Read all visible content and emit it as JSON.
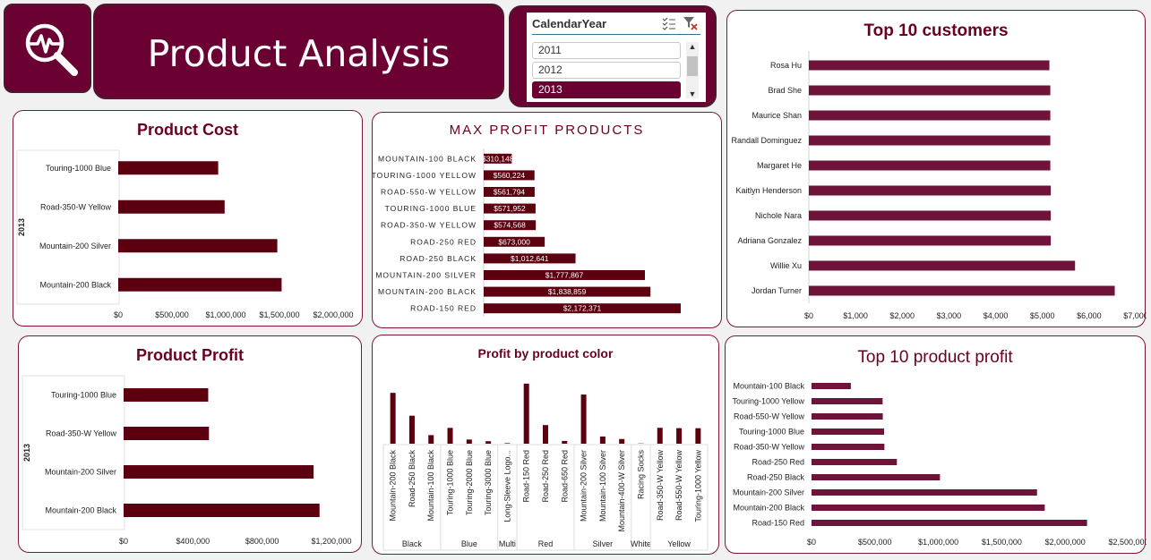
{
  "header": {
    "title": "Product Analysis",
    "icon": "analytics-search-icon"
  },
  "slicer": {
    "title": "CalendarYear",
    "items": [
      "2011",
      "2012",
      "2013"
    ],
    "selected": "2013"
  },
  "colors": {
    "maroon": "#6b0033",
    "bar_dark": "#5c0010",
    "bar_light": "#6e1339",
    "title": "#6b0020"
  },
  "charts": {
    "product_cost": {
      "title": "Product Cost",
      "group_label": "2013",
      "chart_data": {
        "type": "bar",
        "orientation": "horizontal",
        "categories": [
          "Touring-1000 Blue",
          "Road-350-W Yellow",
          "Mountain-200 Silver",
          "Mountain-200 Black"
        ],
        "values": [
          930000,
          990000,
          1480000,
          1520000
        ],
        "xlim": [
          0,
          2000000
        ],
        "ticks": [
          "$0",
          "$500,000",
          "$1,000,000",
          "$1,500,000",
          "$2,000,000"
        ]
      }
    },
    "max_profit": {
      "title": "MAX PROFIT PRODUCTS",
      "chart_data": {
        "type": "bar",
        "orientation": "horizontal",
        "categories": [
          "MOUNTAIN-100 BLACK",
          "TOURING-1000 YELLOW",
          "ROAD-550-W YELLOW",
          "TOURING-1000 BLUE",
          "ROAD-350-W YELLOW",
          "ROAD-250 RED",
          "ROAD-250 BLACK",
          "MOUNTAIN-200 SILVER",
          "MOUNTAIN-200 BLACK",
          "ROAD-150 RED"
        ],
        "values": [
          310148,
          560224,
          561794,
          571952,
          574568,
          673000,
          1012641,
          1777867,
          1838859,
          2172371
        ],
        "labels": [
          "$310,148",
          "$560,224",
          "$561,794",
          "$571,952",
          "$574,568",
          "$673,000",
          "$1,012,641",
          "$1,777,867",
          "$1,838,859",
          "$2,172,371"
        ],
        "xlim": [
          0,
          2400000
        ]
      }
    },
    "top_customers": {
      "title": "Top 10 customers",
      "chart_data": {
        "type": "bar",
        "orientation": "horizontal",
        "categories": [
          "Rosa Hu",
          "Brad She",
          "Maurice Shan",
          "Randall Dominguez",
          "Margaret He",
          "Kaitlyn Henderson",
          "Nichole Nara",
          "Adriana Gonzalez",
          "Willie Xu",
          "Jordan Turner"
        ],
        "values": [
          5150,
          5170,
          5170,
          5170,
          5170,
          5180,
          5180,
          5180,
          5700,
          6550
        ],
        "xlim": [
          0,
          7000
        ],
        "ticks": [
          "$0",
          "$1,000",
          "$2,000",
          "$3,000",
          "$4,000",
          "$5,000",
          "$6,000",
          "$7,000"
        ]
      }
    },
    "product_profit": {
      "title": "Product Profit",
      "group_label": "2013",
      "chart_data": {
        "type": "bar",
        "orientation": "horizontal",
        "categories": [
          "Touring-1000 Blue",
          "Road-350-W Yellow",
          "Mountain-200 Silver",
          "Mountain-200 Black"
        ],
        "values": [
          570000,
          575000,
          1280000,
          1320000
        ],
        "xlim": [
          0,
          1400000
        ],
        "ticks": [
          "$0",
          "$400,000",
          "$800,000",
          "$1,200,000"
        ]
      }
    },
    "profit_by_color": {
      "title": "Profit by product color",
      "chart_data": {
        "type": "bar",
        "orientation": "vertical",
        "categories": [
          "Mountain-200 Black",
          "Road-250 Black",
          "Mountain-100 Black",
          "Touring-1000 Blue",
          "Touring-2000 Blue",
          "Touring-3000 Blue",
          "Long-Sleeve Logo...",
          "Road-150 Red",
          "Road-250 Red",
          "Road-650 Red",
          "Mountain-200 Silver",
          "Mountain-100 Silver",
          "Mountain-400-W Silver",
          "Racing Socks",
          "Road-350-W Yellow",
          "Road-550-W Yellow",
          "Touring-1000 Yellow"
        ],
        "values": [
          1838859,
          1012641,
          310148,
          571952,
          150000,
          90000,
          20000,
          2172371,
          673000,
          100000,
          1777867,
          260000,
          170000,
          10000,
          574568,
          561794,
          560224
        ],
        "groups": [
          {
            "name": "Black",
            "span": 3
          },
          {
            "name": "Blue",
            "span": 3
          },
          {
            "name": "Multi",
            "span": 1
          },
          {
            "name": "Red",
            "span": 3
          },
          {
            "name": "Silver",
            "span": 3
          },
          {
            "name": "White",
            "span": 1
          },
          {
            "name": "Yellow",
            "span": 3
          }
        ],
        "ylim": [
          0,
          2200000
        ]
      }
    },
    "top_product_profit": {
      "title": "Top 10 product profit",
      "chart_data": {
        "type": "bar",
        "orientation": "horizontal",
        "categories": [
          "Mountain-100 Black",
          "Touring-1000 Yellow",
          "Road-550-W Yellow",
          "Touring-1000 Blue",
          "Road-350-W Yellow",
          "Road-250 Red",
          "Road-250 Black",
          "Mountain-200 Silver",
          "Mountain-200 Black",
          "Road-150 Red"
        ],
        "values": [
          310148,
          560224,
          561794,
          571952,
          574568,
          673000,
          1012641,
          1777867,
          1838859,
          2172371
        ],
        "xlim": [
          0,
          2500000
        ],
        "ticks": [
          "$0",
          "$500,000",
          "$1,000,000",
          "$1,500,000",
          "$2,000,000",
          "$2,500,000"
        ]
      }
    }
  }
}
